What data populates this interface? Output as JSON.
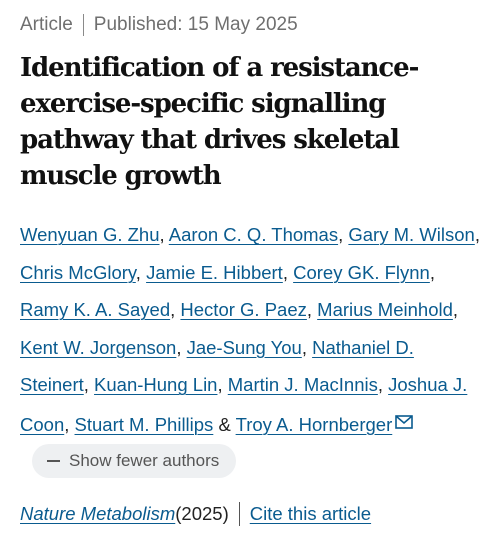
{
  "meta": {
    "type": "Article",
    "published": "Published: 15 May 2025"
  },
  "title": "Identification of a resistance-exercise-specific signalling pathway that drives skeletal muscle growth",
  "authors": [
    "Wenyuan G. Zhu",
    "Aaron C. Q. Thomas",
    "Gary M. Wilson",
    "Chris McGlory",
    "Jamie E. Hibbert",
    "Corey GK. Flynn",
    "Ramy K. A. Sayed",
    "Hector G. Paez",
    "Marius Meinhold",
    "Kent W. Jorgenson",
    "Jae-Sung You",
    "Nathaniel D. Steinert",
    "Kuan-Hung Lin",
    "Martin J. MacInnis",
    "Joshua J. Coon",
    "Stuart M. Phillips",
    "Troy A. Hornberger"
  ],
  "author_separator": ", ",
  "last_separator": " & ",
  "corresponding_icon": "envelope-icon",
  "show_fewer_label": "Show fewer authors",
  "journal": {
    "name": "Nature Metabolism",
    "year": " (2025)",
    "cite_label": "Cite this article"
  },
  "colors": {
    "link": "#0a5b8f",
    "meta_text": "#6f6f6f",
    "button_bg": "#eef0f2"
  }
}
